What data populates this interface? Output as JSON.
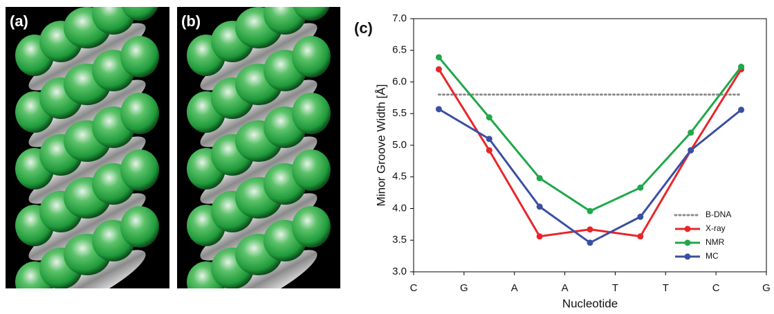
{
  "panel_labels": [
    "(a)",
    "(b)",
    "(c)"
  ],
  "chart_data": {
    "type": "line",
    "x_label": "Nucleotide",
    "y_label": "Minor Groove Width [Å]",
    "x": [
      0.5,
      1.5,
      2.5,
      3.5,
      4.5,
      5.5,
      6.5
    ],
    "series": [
      {
        "name": "B-DNA",
        "color": "#8c8c8c",
        "line_style": "dotted",
        "marker": false,
        "values": [
          5.8,
          5.8,
          5.8,
          5.8,
          5.8,
          5.8,
          5.8
        ]
      },
      {
        "name": "X-ray",
        "color": "#e8262a",
        "line_style": "solid",
        "marker": true,
        "values": [
          6.2,
          4.92,
          3.56,
          3.67,
          3.56,
          4.92,
          6.2
        ]
      },
      {
        "name": "NMR",
        "color": "#1fa84a",
        "line_style": "solid",
        "marker": true,
        "values": [
          6.39,
          5.44,
          4.48,
          3.96,
          4.33,
          5.2,
          6.24
        ]
      },
      {
        "name": "MC",
        "color": "#3a4fa3",
        "line_style": "solid",
        "marker": true,
        "values": [
          5.57,
          5.1,
          4.03,
          3.46,
          3.87,
          4.92,
          5.56
        ]
      }
    ],
    "xlim": [
      0,
      7
    ],
    "xticks": [
      {
        "value": 0,
        "label": "C"
      },
      {
        "value": 1,
        "label": "G"
      },
      {
        "value": 2,
        "label": "A"
      },
      {
        "value": 3,
        "label": "A"
      },
      {
        "value": 4,
        "label": "T"
      },
      {
        "value": 5,
        "label": "T"
      },
      {
        "value": 6,
        "label": "C"
      },
      {
        "value": 7,
        "label": "G"
      }
    ],
    "ylim": [
      3,
      7
    ],
    "yticks": [
      {
        "value": 3,
        "label": "3.0"
      },
      {
        "value": 3.5,
        "label": "3.5"
      },
      {
        "value": 4,
        "label": "4.0"
      },
      {
        "value": 4.5,
        "label": "4.5"
      },
      {
        "value": 5,
        "label": "5.0"
      },
      {
        "value": 5.5,
        "label": "5.5"
      },
      {
        "value": 6,
        "label": "6.0"
      },
      {
        "value": 6.5,
        "label": "6.5"
      },
      {
        "value": 7,
        "label": "7.0"
      }
    ],
    "legend": "lower right"
  }
}
